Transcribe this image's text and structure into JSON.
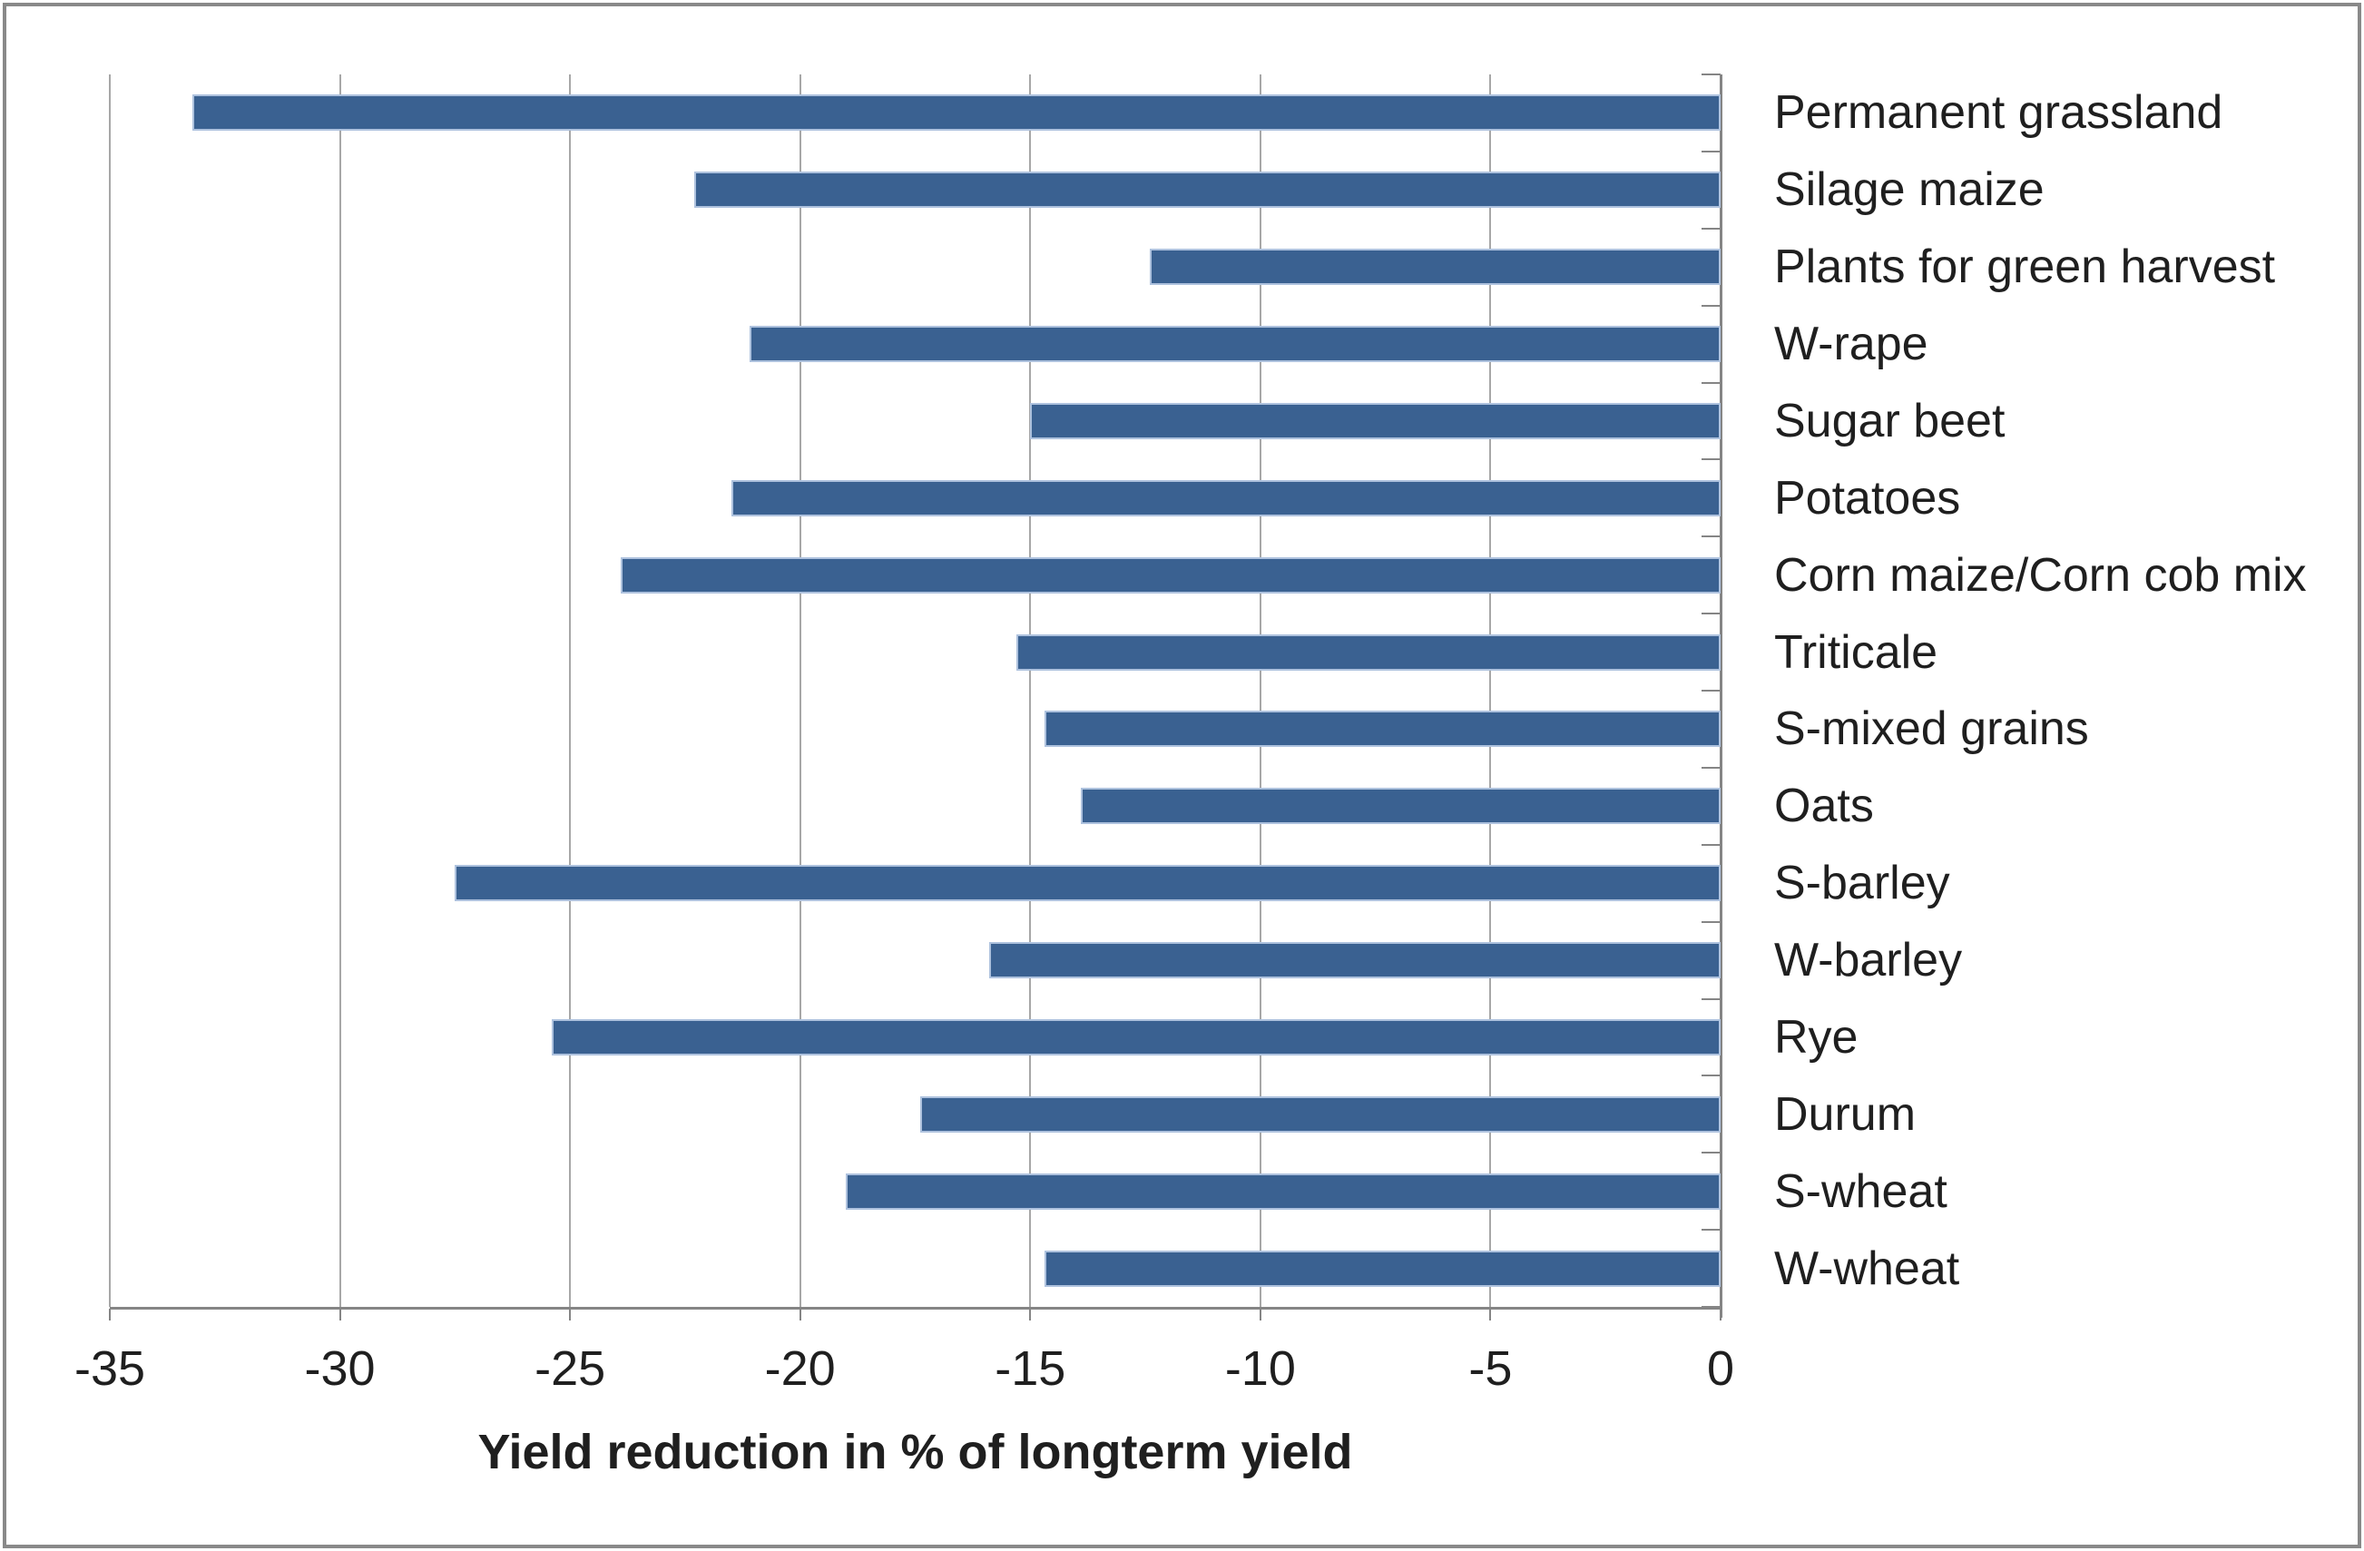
{
  "chart_data": {
    "type": "bar",
    "orientation": "horizontal",
    "title": "",
    "xlabel": "Yield reduction in % of longterm yield",
    "ylabel": "",
    "categories": [
      "Permanent grassland",
      "Silage maize",
      "Plants for green harvest",
      "W-rape",
      "Sugar beet",
      "Potatoes",
      "Corn maize/Corn cob mix",
      "Triticale",
      "S-mixed grains",
      "Oats",
      "S-barley",
      "W-barley",
      "Rye",
      "Durum",
      "S-wheat",
      "W-wheat"
    ],
    "values": [
      -33.2,
      -22.3,
      -12.4,
      -21.1,
      -15.0,
      -21.5,
      -23.9,
      -15.3,
      -14.7,
      -13.9,
      -27.5,
      -15.9,
      -25.4,
      -17.4,
      -19.0,
      -14.7
    ],
    "xlim": [
      -35,
      0
    ],
    "xticks": [
      -35,
      -30,
      -25,
      -20,
      -15,
      -10,
      -5,
      0
    ],
    "xtick_labels": [
      "-35",
      "-30",
      "-25",
      "-20",
      "-15",
      "-10",
      "-5",
      "0"
    ],
    "grid": true,
    "legend": false,
    "colors": {
      "bar_fill": "#3a6191",
      "bar_border": "#aec2de",
      "gridline": "#a7a7a7",
      "axis": "#858585",
      "text": "#1f1f1f",
      "frame_border": "#898989"
    }
  }
}
